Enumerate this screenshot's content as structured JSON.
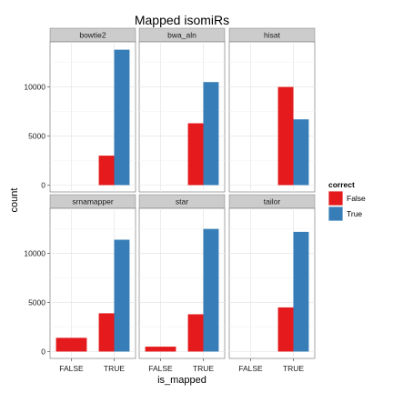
{
  "chart_data": {
    "type": "bar",
    "title": "Mapped isomiRs",
    "xlabel": "is_mapped",
    "ylabel": "count",
    "categories": [
      "FALSE",
      "TRUE"
    ],
    "ylim": [
      -700,
      14600
    ],
    "yticks": [
      0,
      5000,
      10000
    ],
    "legend": {
      "title": "correct",
      "placement": "right",
      "entries": [
        {
          "label": "False",
          "color": "#e41a1c"
        },
        {
          "label": "True",
          "color": "#377eb8"
        }
      ]
    },
    "panels": [
      {
        "name": "bowtie2",
        "bars": [
          {
            "category": "TRUE",
            "correct": "False",
            "value": 3000
          },
          {
            "category": "TRUE",
            "correct": "True",
            "value": 13800
          }
        ]
      },
      {
        "name": "bwa_aln",
        "bars": [
          {
            "category": "TRUE",
            "correct": "False",
            "value": 6300
          },
          {
            "category": "TRUE",
            "correct": "True",
            "value": 10500
          }
        ]
      },
      {
        "name": "hisat",
        "bars": [
          {
            "category": "TRUE",
            "correct": "False",
            "value": 10000
          },
          {
            "category": "TRUE",
            "correct": "True",
            "value": 6700
          }
        ]
      },
      {
        "name": "srnamapper",
        "bars": [
          {
            "category": "FALSE",
            "correct": "False",
            "value": 1400
          },
          {
            "category": "TRUE",
            "correct": "False",
            "value": 3900
          },
          {
            "category": "TRUE",
            "correct": "True",
            "value": 11400
          }
        ]
      },
      {
        "name": "star",
        "bars": [
          {
            "category": "FALSE",
            "correct": "False",
            "value": 500
          },
          {
            "category": "TRUE",
            "correct": "False",
            "value": 3800
          },
          {
            "category": "TRUE",
            "correct": "True",
            "value": 12500
          }
        ]
      },
      {
        "name": "tailor",
        "bars": [
          {
            "category": "TRUE",
            "correct": "False",
            "value": 4500
          },
          {
            "category": "TRUE",
            "correct": "True",
            "value": 12200
          }
        ]
      }
    ]
  }
}
